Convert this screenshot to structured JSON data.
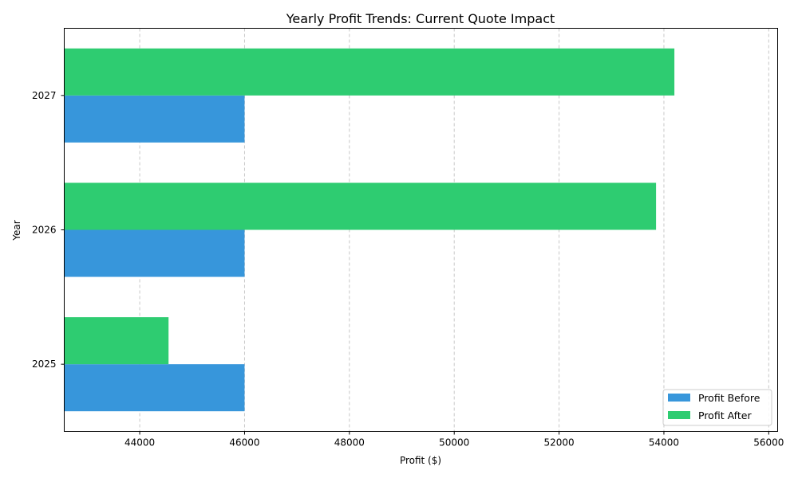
{
  "chart_data": {
    "type": "bar",
    "orientation": "horizontal",
    "title": "Yearly Profit Trends: Current Quote Impact",
    "xlabel": "Profit ($)",
    "ylabel": "Year",
    "categories": [
      "2025",
      "2026",
      "2027"
    ],
    "series": [
      {
        "name": "Profit Before",
        "values": [
          46000,
          46000,
          46000
        ],
        "color": "#3796db"
      },
      {
        "name": "Profit After",
        "values": [
          44550,
          53850,
          54200
        ],
        "color": "#2ecc71"
      }
    ],
    "xlim": [
      42560,
      56170
    ],
    "xticks": [
      44000,
      46000,
      48000,
      50000,
      52000,
      54000,
      56000
    ],
    "xtick_labels": [
      "44000",
      "46000",
      "48000",
      "50000",
      "52000",
      "54000",
      "56000"
    ],
    "grid": {
      "x": true,
      "y": false,
      "style": "dashed"
    },
    "legend": "lower-right"
  }
}
